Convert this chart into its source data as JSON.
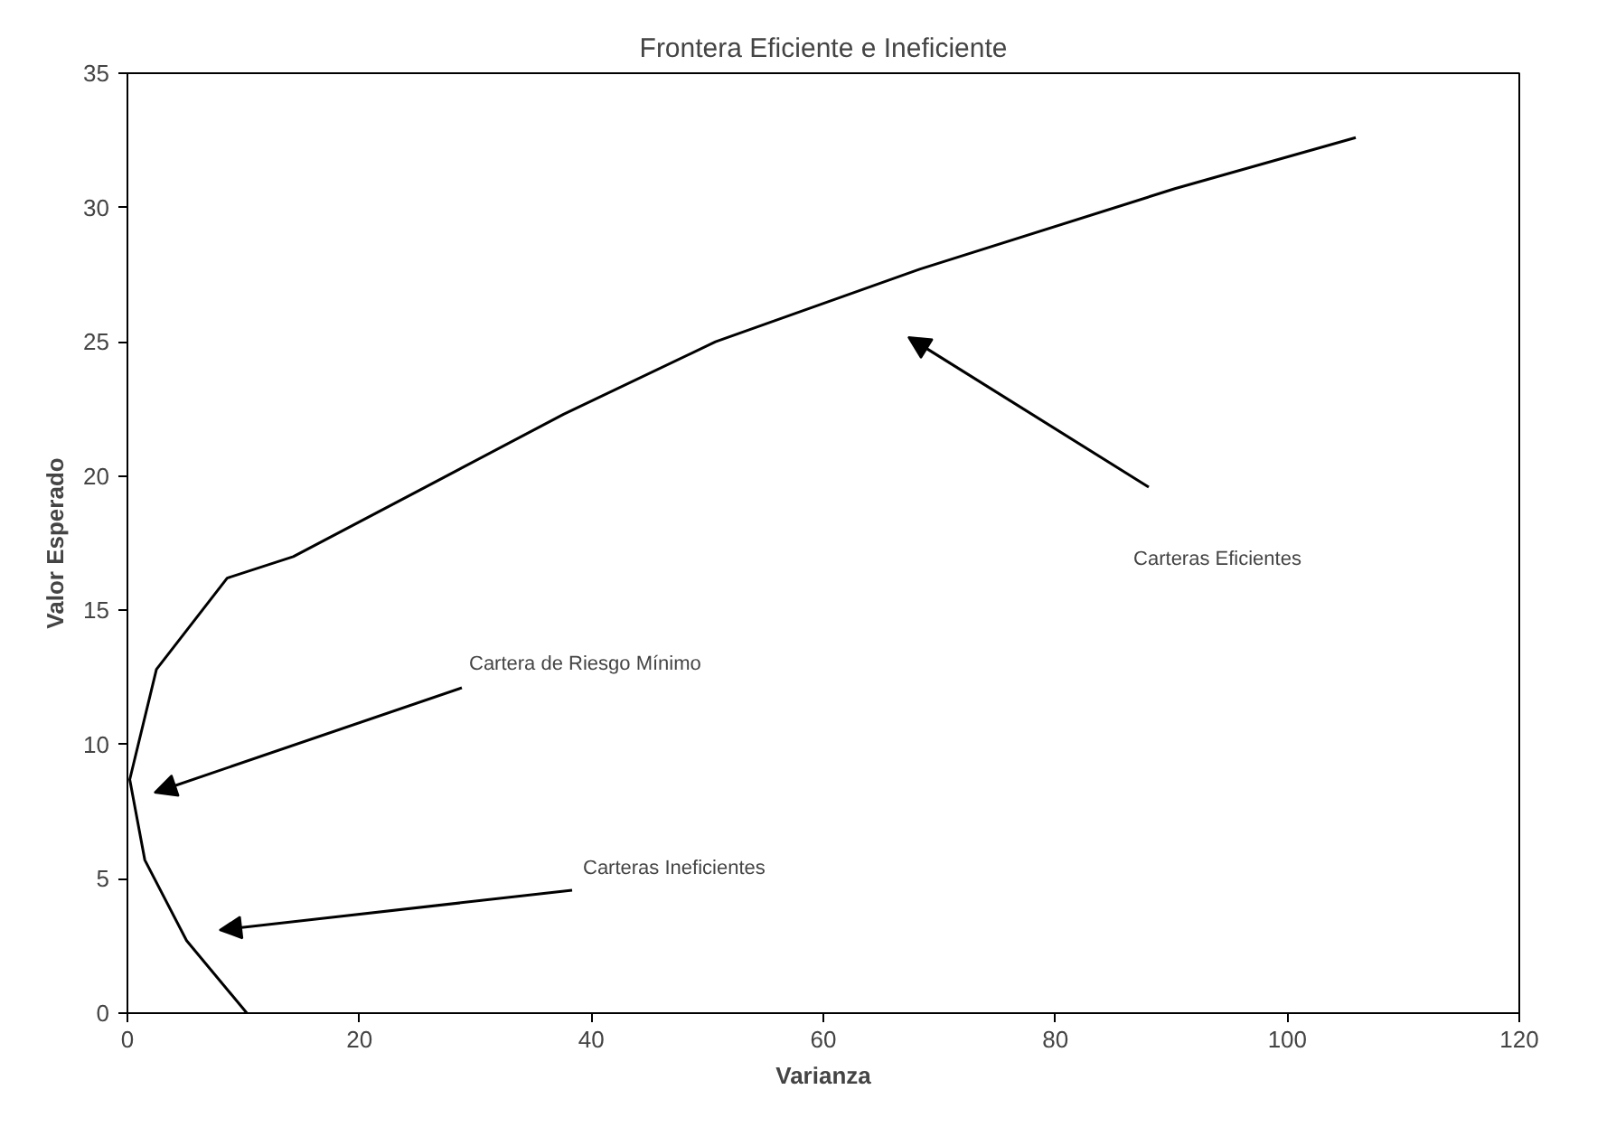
{
  "chart_data": {
    "type": "line",
    "title": "Frontera Eficiente e Ineficiente",
    "xlabel": "Varianza",
    "ylabel": "Valor Esperado",
    "series": [
      {
        "color": "#000000",
        "x": [
          10.3,
          5.1,
          1.5,
          0.2,
          2.5,
          8.6,
          14.3,
          25.3,
          37.6,
          50.7,
          68.3,
          90.3,
          105.9
        ],
        "values": [
          0,
          2.7,
          5.7,
          8.7,
          12.8,
          16.2,
          17.0,
          19.5,
          22.3,
          25.0,
          27.7,
          30.7,
          32.6
        ]
      }
    ],
    "xlim": [
      0,
      120
    ],
    "xticks": [
      0,
      20,
      40,
      60,
      80,
      100,
      120
    ],
    "ylim": [
      0,
      35
    ],
    "yticks": [
      0,
      5,
      10,
      15,
      20,
      25,
      30,
      35
    ],
    "grid": false,
    "marker": "none",
    "line_style": "solid",
    "annotations": [
      "Carteras Ineficientes",
      "Cartera de Riesgo Mínimo",
      "Carteras Eficientes"
    ]
  }
}
